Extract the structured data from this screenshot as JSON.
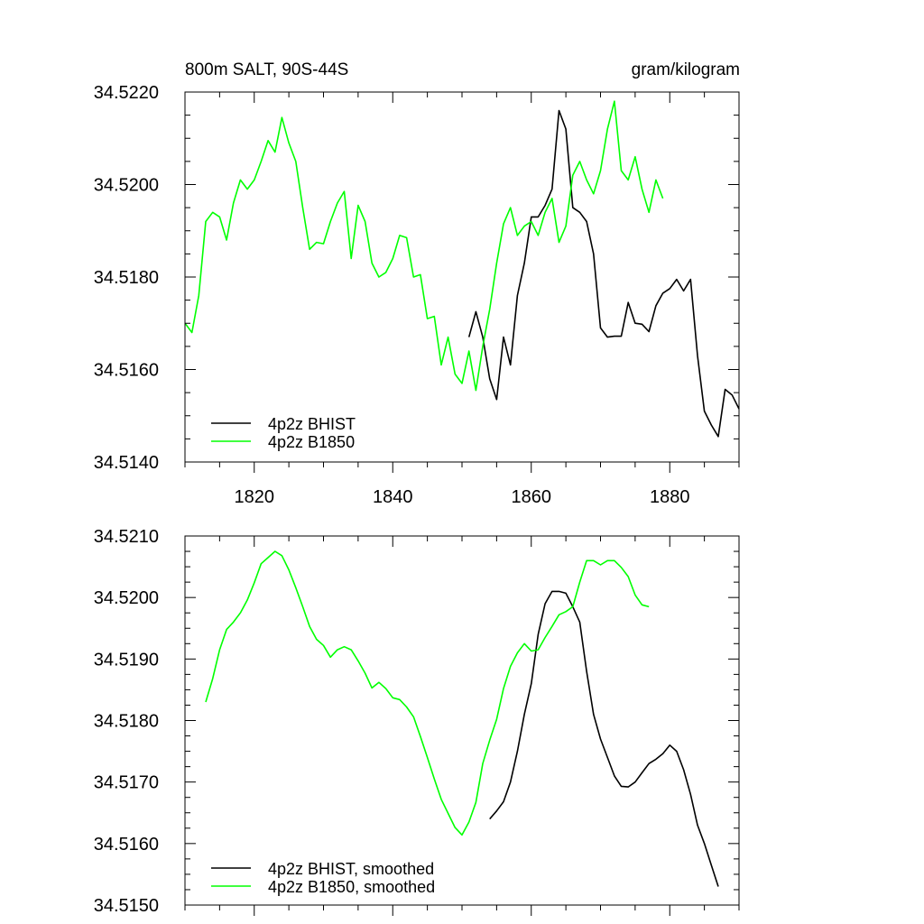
{
  "header": {
    "left": "800m SALT, 90S-44S",
    "right": "gram/kilogram"
  },
  "chart_data": [
    {
      "type": "line",
      "xlim": [
        1810,
        1890
      ],
      "ylim": [
        34.514,
        34.522
      ],
      "x_ticks": [
        "1820",
        "1840",
        "1860",
        "1880"
      ],
      "y_ticks": [
        "34.5140",
        "34.5160",
        "34.5180",
        "34.5200",
        "34.5220"
      ],
      "grid": false,
      "legend_position": "bottom-left",
      "series": [
        {
          "name": "4p2z BHIST",
          "color": "#000000",
          "x": [
            1851,
            1852,
            1853,
            1854,
            1855,
            1856,
            1857,
            1858,
            1859,
            1860,
            1861,
            1862,
            1863,
            1864,
            1865,
            1866,
            1867,
            1868,
            1869,
            1870,
            1871,
            1872,
            1873,
            1874,
            1875,
            1876,
            1877,
            1878,
            1879,
            1880,
            1881,
            1882,
            1883,
            1884,
            1885,
            1886,
            1887,
            1888,
            1889,
            1890
          ],
          "y": [
            34.5167,
            34.51725,
            34.5167,
            34.5158,
            34.51535,
            34.5167,
            34.5161,
            34.5176,
            34.5183,
            34.5193,
            34.5193,
            34.51955,
            34.5199,
            34.5216,
            34.5212,
            34.5195,
            34.5194,
            34.5192,
            34.5185,
            34.5169,
            34.5167,
            34.51672,
            34.51672,
            34.51745,
            34.517,
            34.51698,
            34.51682,
            34.51738,
            34.51765,
            34.51775,
            34.51795,
            34.5177,
            34.51795,
            34.5163,
            34.5151,
            34.5148,
            34.51455,
            34.51557,
            34.51545,
            34.51515
          ]
        },
        {
          "name": "4p2z B1850",
          "color": "#00ff00",
          "x": [
            1810,
            1811,
            1812,
            1813,
            1814,
            1815,
            1816,
            1817,
            1818,
            1819,
            1820,
            1821,
            1822,
            1823,
            1824,
            1825,
            1826,
            1827,
            1828,
            1829,
            1830,
            1831,
            1832,
            1833,
            1834,
            1835,
            1836,
            1837,
            1838,
            1839,
            1840,
            1841,
            1842,
            1843,
            1844,
            1845,
            1846,
            1847,
            1848,
            1849,
            1850,
            1851,
            1852,
            1853,
            1854,
            1855,
            1856,
            1857,
            1858,
            1859,
            1860,
            1861,
            1862,
            1863,
            1864,
            1865,
            1866,
            1867,
            1868,
            1869,
            1870,
            1871,
            1872,
            1873,
            1874,
            1875,
            1876,
            1877,
            1878,
            1879
          ],
          "y": [
            34.517,
            34.5168,
            34.5176,
            34.5192,
            34.5194,
            34.5193,
            34.5188,
            34.5196,
            34.5201,
            34.5199,
            34.5201,
            34.5205,
            34.52095,
            34.5207,
            34.52145,
            34.5209,
            34.5205,
            34.5195,
            34.5186,
            34.51875,
            34.51872,
            34.5192,
            34.5196,
            34.51985,
            34.5184,
            34.51955,
            34.5192,
            34.5183,
            34.518,
            34.5181,
            34.5184,
            34.5189,
            34.51885,
            34.518,
            34.51805,
            34.5171,
            34.51715,
            34.5161,
            34.5167,
            34.5159,
            34.5157,
            34.5164,
            34.51555,
            34.5165,
            34.5173,
            34.5183,
            34.51915,
            34.5195,
            34.5189,
            34.5191,
            34.5192,
            34.5189,
            34.5194,
            34.5197,
            34.51875,
            34.5191,
            34.5202,
            34.5205,
            34.5201,
            34.5198,
            34.5203,
            34.5212,
            34.5218,
            34.5203,
            34.5201,
            34.5206,
            34.5199,
            34.5194,
            34.5201,
            34.5197
          ]
        }
      ]
    },
    {
      "type": "line",
      "xlim": [
        1810,
        1890
      ],
      "ylim": [
        34.515,
        34.521
      ],
      "x_ticks": [],
      "y_ticks": [
        "34.5150",
        "34.5160",
        "34.5170",
        "34.5180",
        "34.5190",
        "34.5200",
        "34.5210"
      ],
      "grid": false,
      "legend_position": "bottom-left",
      "series": [
        {
          "name": "4p2z BHIST, smoothed",
          "color": "#000000",
          "x": [
            1854,
            1855,
            1856,
            1857,
            1858,
            1859,
            1860,
            1861,
            1862,
            1863,
            1864,
            1865,
            1866,
            1867,
            1868,
            1869,
            1870,
            1871,
            1872,
            1873,
            1874,
            1875,
            1876,
            1877,
            1878,
            1879,
            1880,
            1881,
            1882,
            1883,
            1884,
            1885,
            1886,
            1887
          ],
          "y": [
            34.5164,
            34.51653,
            34.51668,
            34.517,
            34.5175,
            34.5181,
            34.5186,
            34.5194,
            34.5199,
            34.5201,
            34.5201,
            34.52007,
            34.51985,
            34.5196,
            34.5188,
            34.5181,
            34.5177,
            34.5174,
            34.5171,
            34.51693,
            34.51692,
            34.517,
            34.51715,
            34.5173,
            34.51737,
            34.51746,
            34.5176,
            34.5175,
            34.5172,
            34.5168,
            34.5163,
            34.516,
            34.51565,
            34.5153
          ]
        },
        {
          "name": "4p2z B1850, smoothed",
          "color": "#00ff00",
          "x": [
            1813,
            1814,
            1815,
            1816,
            1817,
            1818,
            1819,
            1820,
            1821,
            1822,
            1823,
            1824,
            1825,
            1826,
            1827,
            1828,
            1829,
            1830,
            1831,
            1832,
            1833,
            1834,
            1835,
            1836,
            1837,
            1838,
            1839,
            1840,
            1841,
            1842,
            1843,
            1844,
            1845,
            1846,
            1847,
            1848,
            1849,
            1850,
            1851,
            1852,
            1853,
            1854,
            1855,
            1856,
            1857,
            1858,
            1859,
            1860,
            1861,
            1862,
            1863,
            1864,
            1865,
            1866,
            1867,
            1868,
            1869,
            1870,
            1871,
            1872,
            1873,
            1874,
            1875,
            1876,
            1877
          ],
          "y": [
            34.5183,
            34.51868,
            34.51915,
            34.51948,
            34.5196,
            34.51975,
            34.51996,
            34.52024,
            34.52055,
            34.52065,
            34.52075,
            34.52068,
            34.52045,
            34.52016,
            34.51985,
            34.51953,
            34.51932,
            34.51922,
            34.51903,
            34.51915,
            34.5192,
            34.51915,
            34.51897,
            34.51877,
            34.51853,
            34.51862,
            34.51852,
            34.51837,
            34.51834,
            34.51822,
            34.51806,
            34.51774,
            34.5174,
            34.51705,
            34.51672,
            34.51649,
            34.51626,
            34.51614,
            34.51635,
            34.51667,
            34.5173,
            34.51768,
            34.51802,
            34.51852,
            34.51888,
            34.5191,
            34.51925,
            34.51913,
            34.51915,
            34.51935,
            34.51953,
            34.51972,
            34.51977,
            34.51985,
            34.52025,
            34.5206,
            34.5206,
            34.52053,
            34.5206,
            34.5206,
            34.52049,
            34.52034,
            34.52004,
            34.51988,
            34.51985
          ]
        }
      ]
    }
  ]
}
